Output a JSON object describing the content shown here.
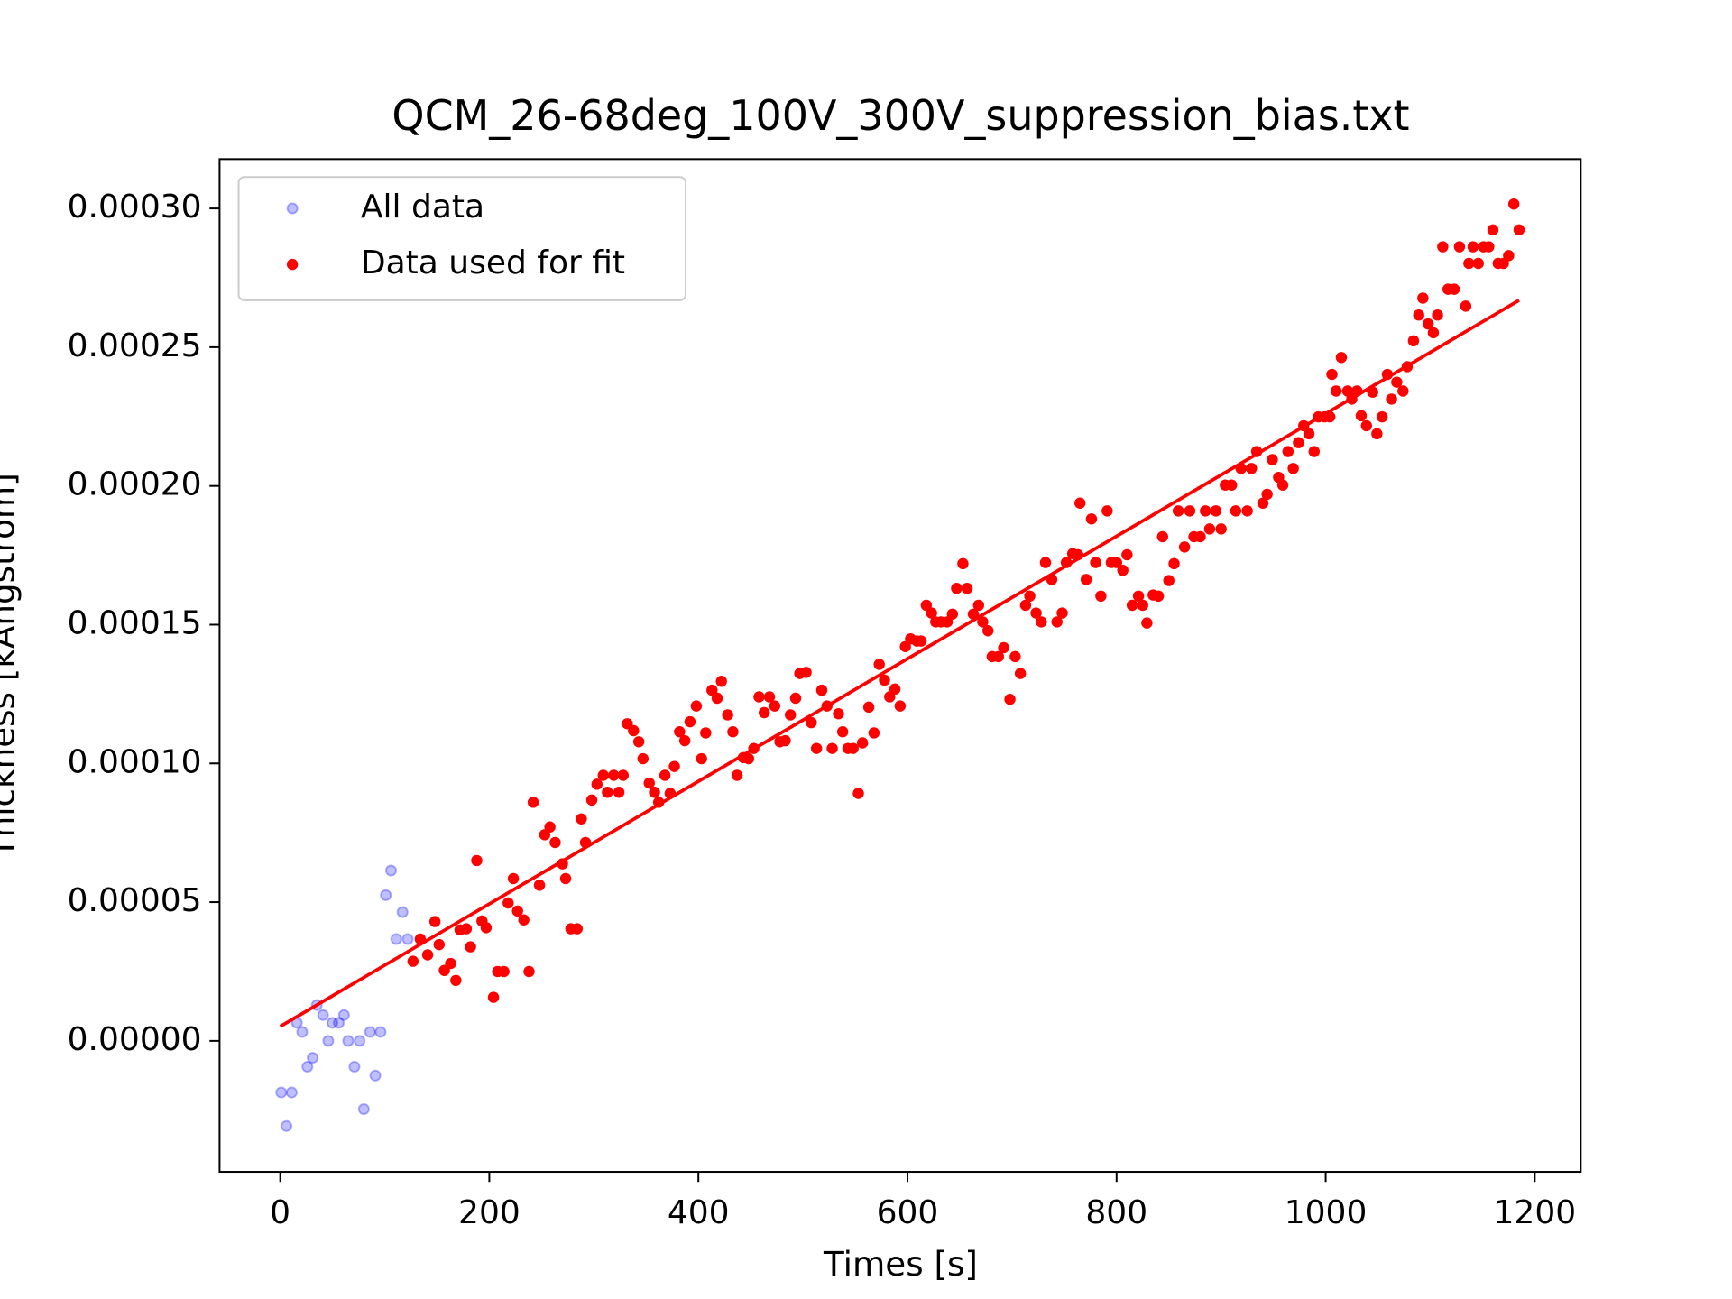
{
  "chart_data": {
    "type": "scatter",
    "title": "QCM_26-68deg_100V_300V_suppression_bias.txt",
    "xlabel": "Times [s]",
    "ylabel": "Thickness [kÅngstrom]",
    "xlim": [
      -58,
      1244
    ],
    "ylim": [
      -4.72e-05,
      0.0003178
    ],
    "xticks": [
      0,
      200,
      400,
      600,
      800,
      1000,
      1200
    ],
    "yticks": [
      {
        "value": 0,
        "label": "0.00000"
      },
      {
        "value": 5e-05,
        "label": "0.00005"
      },
      {
        "value": 0.0001,
        "label": "0.00010"
      },
      {
        "value": 0.00015,
        "label": "0.00015"
      },
      {
        "value": 0.0002,
        "label": "0.00020"
      },
      {
        "value": 0.00025,
        "label": "0.00025"
      },
      {
        "value": 0.0003,
        "label": "0.00030"
      }
    ],
    "legend": "upper left",
    "series": [
      {
        "name": "All data",
        "color": "#0000ff",
        "x": [
          1,
          6,
          11,
          16,
          21,
          26,
          31,
          35,
          41,
          46,
          50,
          56,
          61,
          65,
          71,
          76,
          80,
          86,
          91,
          96,
          101,
          106,
          111,
          117,
          122
        ],
        "values": [
          -1.86e-05,
          -3.07e-05,
          -1.86e-05,
          6.5e-06,
          3.2e-06,
          -9.3e-06,
          -6.1e-06,
          1.29e-05,
          9.3e-06,
          0,
          6.5e-06,
          6.5e-06,
          9.3e-06,
          0,
          -9.3e-06,
          0,
          -2.46e-05,
          3.2e-06,
          -1.25e-05,
          3.2e-06,
          5.25e-05,
          6.14e-05,
          3.67e-05,
          4.64e-05,
          3.67e-05
        ]
      },
      {
        "name": "Data used for fit",
        "color": "#ff0000",
        "x": [
          127,
          134,
          141,
          148,
          152,
          157,
          163,
          168,
          172,
          178,
          182,
          188,
          193,
          197,
          204,
          208,
          214,
          218,
          223,
          227,
          233,
          238,
          242,
          248,
          253,
          258,
          263,
          270,
          273,
          278,
          284,
          288,
          292,
          298,
          303,
          309,
          313,
          319,
          324,
          328,
          332,
          338,
          343,
          347,
          353,
          358,
          362,
          368,
          373,
          377,
          382,
          387,
          392,
          398,
          403,
          407,
          413,
          418,
          422,
          428,
          433,
          437,
          443,
          448,
          453,
          458,
          463,
          468,
          473,
          478,
          483,
          488,
          493,
          497,
          503,
          508,
          513,
          518,
          523,
          528,
          534,
          538,
          543,
          548,
          553,
          557,
          563,
          568,
          573,
          578,
          583,
          588,
          593,
          598,
          603,
          609,
          613,
          618,
          623,
          627,
          632,
          638,
          643,
          647,
          653,
          657,
          663,
          668,
          672,
          677,
          681,
          687,
          692,
          698,
          703,
          708,
          713,
          717,
          723,
          728,
          732,
          738,
          743,
          748,
          752,
          758,
          763,
          765,
          771,
          776,
          780,
          785,
          791,
          795,
          800,
          806,
          810,
          815,
          821,
          825,
          829,
          835,
          840,
          844,
          850,
          855,
          859,
          865,
          870,
          874,
          880,
          885,
          889,
          895,
          900,
          904,
          910,
          914,
          919,
          925,
          929,
          934,
          940,
          944,
          949,
          955,
          959,
          964,
          969,
          974,
          979,
          984,
          989,
          993,
          999,
          1004,
          1006,
          1010,
          1015,
          1021,
          1025,
          1030,
          1034,
          1039,
          1045,
          1049,
          1054,
          1059,
          1063,
          1068,
          1074,
          1078,
          1084,
          1089,
          1093,
          1098,
          1103,
          1107,
          1112,
          1117,
          1123,
          1128,
          1134,
          1137,
          1141,
          1146,
          1151,
          1156,
          1160,
          1165,
          1170,
          1175,
          1180,
          1185
        ],
        "values": [
          2.87e-05,
          3.67e-05,
          3.1e-05,
          4.3e-05,
          3.47e-05,
          2.54e-05,
          2.79e-05,
          2.18e-05,
          4e-05,
          4.04e-05,
          3.39e-05,
          6.5e-05,
          4.32e-05,
          4.08e-05,
          1.57e-05,
          2.5e-05,
          2.5e-05,
          4.97e-05,
          5.85e-05,
          4.68e-05,
          4.36e-05,
          2.5e-05,
          8.6e-05,
          5.61e-05,
          7.43e-05,
          7.71e-05,
          7.15e-05,
          6.38e-05,
          5.85e-05,
          4.04e-05,
          4.04e-05,
          8e-05,
          7.15e-05,
          8.68e-05,
          9.25e-05,
          9.57e-05,
          8.96e-05,
          9.57e-05,
          8.96e-05,
          9.57e-05,
          0.0001143,
          0.0001118,
          0.0001078,
          0.0001017,
          9.29e-05,
          8.96e-05,
          8.6e-05,
          9.57e-05,
          8.92e-05,
          9.89e-05,
          0.0001114,
          0.0001082,
          0.000115,
          0.0001207,
          0.0001017,
          0.000111,
          0.0001264,
          0.0001235,
          0.0001296,
          0.0001175,
          0.0001114,
          9.57e-05,
          0.0001021,
          0.0001017,
          0.0001054,
          0.000124,
          0.0001183,
          0.000124,
          0.0001207,
          0.0001078,
          0.0001082,
          0.0001175,
          0.0001235,
          0.0001324,
          0.0001328,
          0.0001147,
          0.0001054,
          0.0001264,
          0.0001207,
          0.0001054,
          0.0001179,
          0.0001114,
          0.0001054,
          0.0001054,
          8.92e-05,
          0.0001074,
          0.0001203,
          0.000111,
          0.0001357,
          0.00013,
          0.000124,
          0.0001268,
          0.0001207,
          0.0001421,
          0.0001449,
          0.0001441,
          0.0001441,
          0.000157,
          0.0001542,
          0.000151,
          0.000151,
          0.000151,
          0.0001538,
          0.0001631,
          0.000172,
          0.0001631,
          0.0001538,
          0.000157,
          0.000151,
          0.0001478,
          0.0001385,
          0.0001385,
          0.0001417,
          0.0001231,
          0.0001385,
          0.0001324,
          0.000157,
          0.0001603,
          0.0001542,
          0.000151,
          0.0001724,
          0.0001663,
          0.000151,
          0.0001542,
          0.0001724,
          0.0001756,
          0.0001752,
          0.0001938,
          0.0001663,
          0.0001881,
          0.0001724,
          0.0001603,
          0.000191,
          0.0001724,
          0.0001724,
          0.0001696,
          0.0001752,
          0.000157,
          0.0001603,
          0.000157,
          0.0001506,
          0.0001607,
          0.0001603,
          0.0001817,
          0.0001659,
          0.000172,
          0.000191,
          0.000178,
          0.000191,
          0.0001817,
          0.0001817,
          0.000191,
          0.0001845,
          0.000191,
          0.0001845,
          0.0002003,
          0.0002003,
          0.000191,
          0.0002063,
          0.000191,
          0.0002063,
          0.0002124,
          0.0001938,
          0.000197,
          0.0002095,
          0.0002031,
          0.0002003,
          0.0002124,
          0.0002063,
          0.0002156,
          0.0002217,
          0.0002188,
          0.0002124,
          0.0002249,
          0.0002249,
          0.0002249,
          0.0002402,
          0.0002342,
          0.0002463,
          0.0002342,
          0.0002313,
          0.0002342,
          0.0002253,
          0.0002217,
          0.0002338,
          0.0002188,
          0.0002249,
          0.0002402,
          0.0002313,
          0.0002374,
          0.0002342,
          0.000243,
          0.0002523,
          0.0002616,
          0.0002677,
          0.0002584,
          0.0002552,
          0.0002616,
          0.0002862,
          0.0002709,
          0.0002709,
          0.0002862,
          0.0002648,
          0.0002802,
          0.0002862,
          0.0002802,
          0.0002862,
          0.0002862,
          0.0002923,
          0.0002802,
          0.0002802,
          0.000283,
          0.0003016,
          0.0002923
        ]
      },
      {
        "color": "#ff0000",
        "x": [
          0,
          1185
        ],
        "values": [
          5.2e-06,
          0.0002669
        ]
      }
    ]
  }
}
